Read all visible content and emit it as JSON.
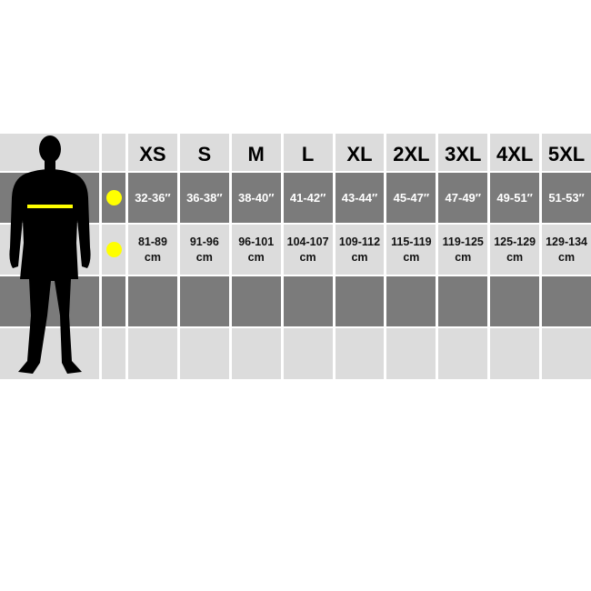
{
  "sizes": [
    "XS",
    "S",
    "M",
    "L",
    "XL",
    "2XL",
    "3XL",
    "4XL",
    "5XL"
  ],
  "chest_inches": [
    "32-36″",
    "36-38″",
    "38-40″",
    "41-42″",
    "43-44″",
    "45-47″",
    "47-49″",
    "49-51″",
    "51-53″"
  ],
  "chest_cm": [
    "81-89",
    "91-96",
    "96-101",
    "104-107",
    "109-112",
    "115-119",
    "119-125",
    "125-129",
    "129-134"
  ],
  "cm_unit": "cm",
  "colors": {
    "marker": "#ffff00",
    "dark_row": "#7b7b7b",
    "light_row": "#dcdcdc"
  },
  "icons": {
    "figure": "male-silhouette-icon",
    "marker": "yellow-dot-icon"
  }
}
